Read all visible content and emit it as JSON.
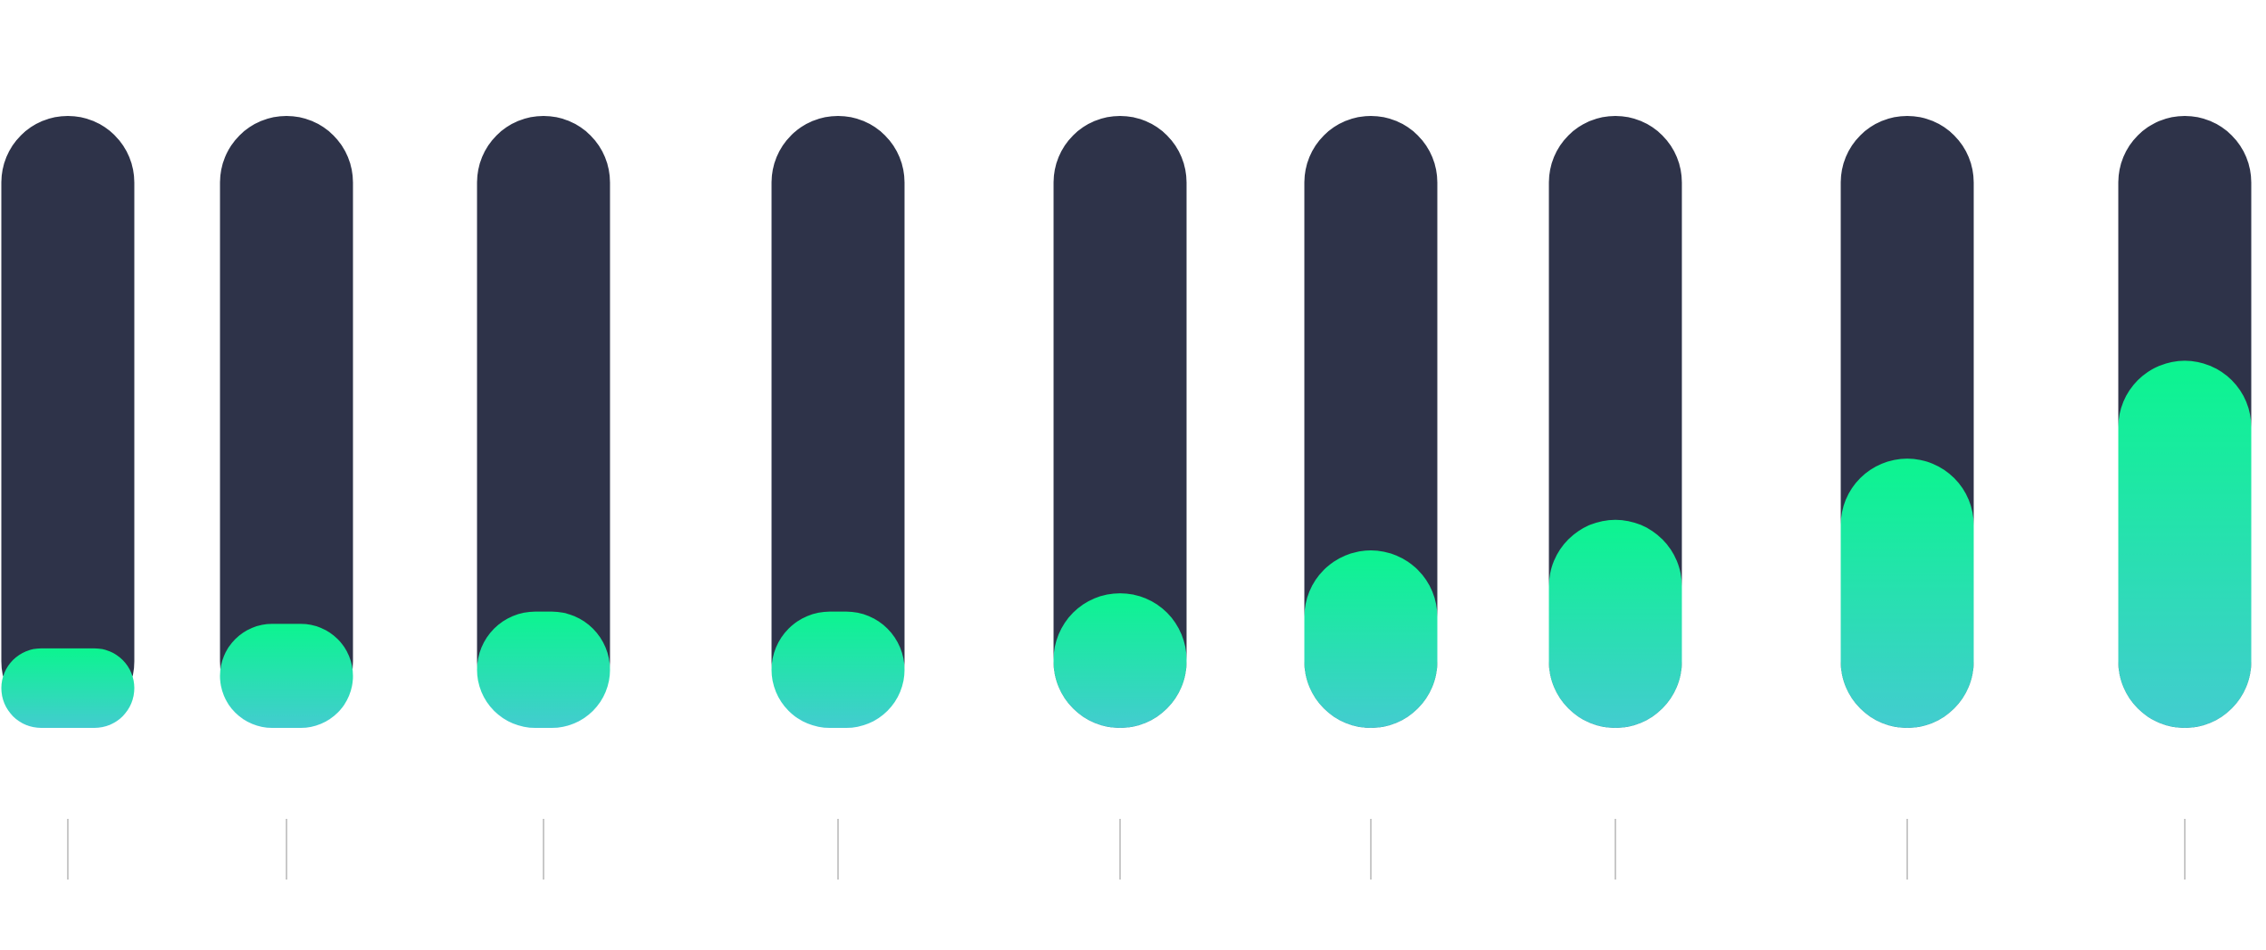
{
  "chart_data": {
    "type": "bar",
    "categories": [
      null,
      null,
      null,
      null,
      null,
      null,
      null,
      null,
      null
    ],
    "values": [
      13,
      17,
      19,
      19,
      22,
      29,
      34,
      44,
      60
    ],
    "color": "#0bf58f",
    "ylim": [
      0,
      100
    ]
  }
}
